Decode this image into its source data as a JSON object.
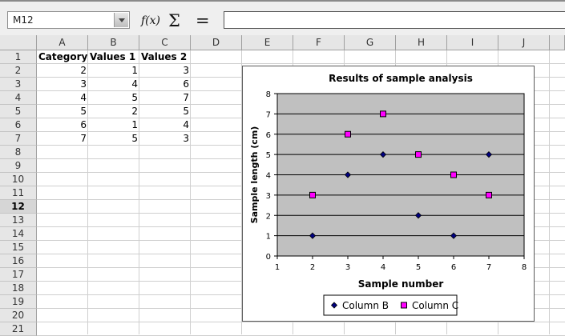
{
  "formula_bar": {
    "name_box_value": "M12",
    "function_wizard_icon": "f(x)",
    "sum_icon": "Σ",
    "formula_icon": "=",
    "formula_value": ""
  },
  "sheet": {
    "columns": [
      "A",
      "B",
      "C",
      "D",
      "E",
      "F",
      "G",
      "H",
      "I",
      "J"
    ],
    "rows": [
      "1",
      "2",
      "3",
      "4",
      "5",
      "6",
      "7",
      "8",
      "9",
      "10",
      "11",
      "12",
      "13",
      "14",
      "15",
      "16",
      "17",
      "18",
      "19",
      "20",
      "21"
    ],
    "active_row": "12",
    "headers": [
      "Category",
      "Values 1",
      "Values 2"
    ],
    "data_rows": [
      [
        "2",
        "1",
        "3"
      ],
      [
        "3",
        "4",
        "6"
      ],
      [
        "4",
        "5",
        "7"
      ],
      [
        "5",
        "2",
        "5"
      ],
      [
        "6",
        "1",
        "4"
      ],
      [
        "7",
        "5",
        "3"
      ]
    ]
  },
  "chart_data": {
    "type": "scatter",
    "title": "Results of sample analysis",
    "xlabel": "Sample number",
    "ylabel": "Sample length (cm)",
    "xlim": [
      1,
      8
    ],
    "ylim": [
      0,
      8
    ],
    "x_ticks": [
      "1",
      "2",
      "3",
      "4",
      "5",
      "6",
      "7",
      "8"
    ],
    "y_ticks": [
      "0",
      "1",
      "2",
      "3",
      "4",
      "5",
      "6",
      "7",
      "8"
    ],
    "grid": "horizontal",
    "plot_background": "#c0c0c0",
    "legend_position": "bottom",
    "series": [
      {
        "name": "Column B",
        "marker": "diamond",
        "color": "#000080",
        "x": [
          2,
          3,
          4,
          5,
          6,
          7
        ],
        "y": [
          1,
          4,
          5,
          2,
          1,
          5
        ]
      },
      {
        "name": "Column C",
        "marker": "square",
        "color": "#ff00ff",
        "x": [
          2,
          3,
          4,
          5,
          6,
          7
        ],
        "y": [
          3,
          6,
          7,
          5,
          4,
          3
        ]
      }
    ]
  }
}
